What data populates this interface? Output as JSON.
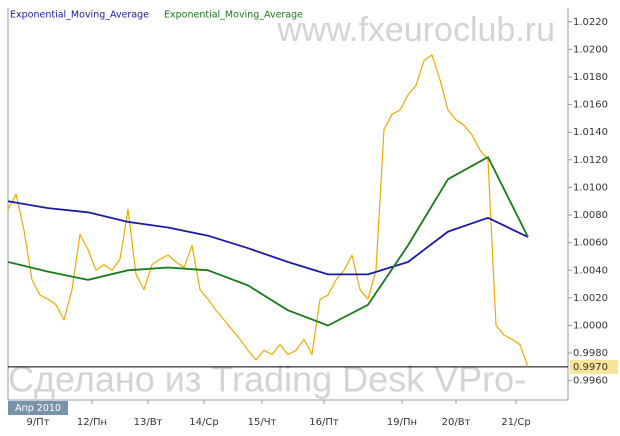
{
  "chart_data": {
    "type": "line",
    "watermark_top": "www.fxeuroclub.ru",
    "watermark_bottom": "Сделано из Trading Desk VPro-",
    "period_label": "Апр 2010",
    "xlim": [
      0,
      140
    ],
    "xticks": [
      {
        "value": 7.5,
        "label": "9/Пт"
      },
      {
        "value": 21,
        "label": "12/Пн"
      },
      {
        "value": 35,
        "label": "13/Вт"
      },
      {
        "value": 49,
        "label": "14/Ср"
      },
      {
        "value": 63.5,
        "label": "15/Чт"
      },
      {
        "value": 79,
        "label": "16/Пт"
      },
      {
        "value": 98.5,
        "label": "19/Пн"
      },
      {
        "value": 112,
        "label": "20/Вт"
      },
      {
        "value": 127,
        "label": "21/Ср"
      }
    ],
    "ylim": [
      0.9946,
      1.023
    ],
    "yticks": [
      {
        "value": 0.996,
        "label": "0.9960"
      },
      {
        "value": 0.998,
        "label": "0.9980"
      },
      {
        "value": 1.0,
        "label": "1.0000"
      },
      {
        "value": 1.002,
        "label": "1.0020"
      },
      {
        "value": 1.004,
        "label": "1.0040"
      },
      {
        "value": 1.006,
        "label": "1.0060"
      },
      {
        "value": 1.008,
        "label": "1.0080"
      },
      {
        "value": 1.01,
        "label": "1.0100"
      },
      {
        "value": 1.012,
        "label": "1.0120"
      },
      {
        "value": 1.014,
        "label": "1.0140"
      },
      {
        "value": 1.016,
        "label": "1.0160"
      },
      {
        "value": 1.018,
        "label": "1.0180"
      },
      {
        "value": 1.02,
        "label": "1.0200"
      },
      {
        "value": 1.022,
        "label": "1.0220"
      }
    ],
    "last_price": {
      "value": 0.997,
      "label": "0.9970"
    },
    "series": [
      {
        "color": "#f0aa00",
        "x": [
          0,
          2,
          4,
          6,
          8,
          10,
          12,
          14,
          16,
          18,
          20,
          22,
          24,
          26,
          28,
          30,
          32,
          34,
          36,
          38,
          40,
          42,
          44,
          46,
          48,
          50,
          52,
          54,
          56,
          58,
          60,
          62,
          64,
          66,
          68,
          70,
          72,
          74,
          76,
          78,
          80,
          82,
          84,
          86,
          88,
          90,
          92,
          94,
          96,
          98,
          100,
          102,
          104,
          106,
          108,
          110,
          112,
          114,
          116,
          118,
          120,
          122,
          124,
          126,
          128,
          130
        ],
        "values": [
          1.0084,
          1.0095,
          1.0069,
          1.0033,
          1.0022,
          1.0019,
          1.0015,
          1.0004,
          1.0026,
          1.0066,
          1.0055,
          1.004,
          1.0044,
          1.004,
          1.0048,
          1.0084,
          1.0037,
          1.0026,
          1.0044,
          1.0048,
          1.0051,
          1.0046,
          1.0042,
          1.0058,
          1.0026,
          1.0019,
          1.0011,
          1.0004,
          0.9997,
          0.999,
          0.9982,
          0.9975,
          0.9982,
          0.9979,
          0.9986,
          0.9979,
          0.9982,
          0.999,
          0.9979,
          1.0019,
          1.0022,
          1.0033,
          1.004,
          1.0051,
          1.0026,
          1.0019,
          1.004,
          1.0142,
          1.0153,
          1.0156,
          1.0167,
          1.0174,
          1.0192,
          1.0196,
          1.0178,
          1.0156,
          1.0149,
          1.0145,
          1.0138,
          1.0127,
          1.012,
          1.0,
          0.9993,
          0.999,
          0.9986,
          0.997
        ]
      },
      {
        "name": "Exponential_Moving_Average",
        "color": "#1a1aa6",
        "x": [
          0,
          10,
          20,
          30,
          40,
          50,
          60,
          70,
          80,
          90,
          100,
          110,
          120,
          130
        ],
        "values": [
          1.009,
          1.0085,
          1.0082,
          1.0075,
          1.0071,
          1.0065,
          1.0056,
          1.0046,
          1.0037,
          1.0037,
          1.0046,
          1.0068,
          1.0078,
          1.0064
        ]
      },
      {
        "name": "Exponential_Moving_Average",
        "color": "#1a7a1a",
        "x": [
          0,
          10,
          20,
          30,
          40,
          50,
          60,
          70,
          80,
          90,
          100,
          110,
          120,
          130
        ],
        "values": [
          1.0046,
          1.0039,
          1.0033,
          1.004,
          1.0042,
          1.004,
          1.0029,
          1.0011,
          1.0,
          1.0015,
          1.0058,
          1.0106,
          1.0122,
          1.0064
        ]
      }
    ]
  }
}
